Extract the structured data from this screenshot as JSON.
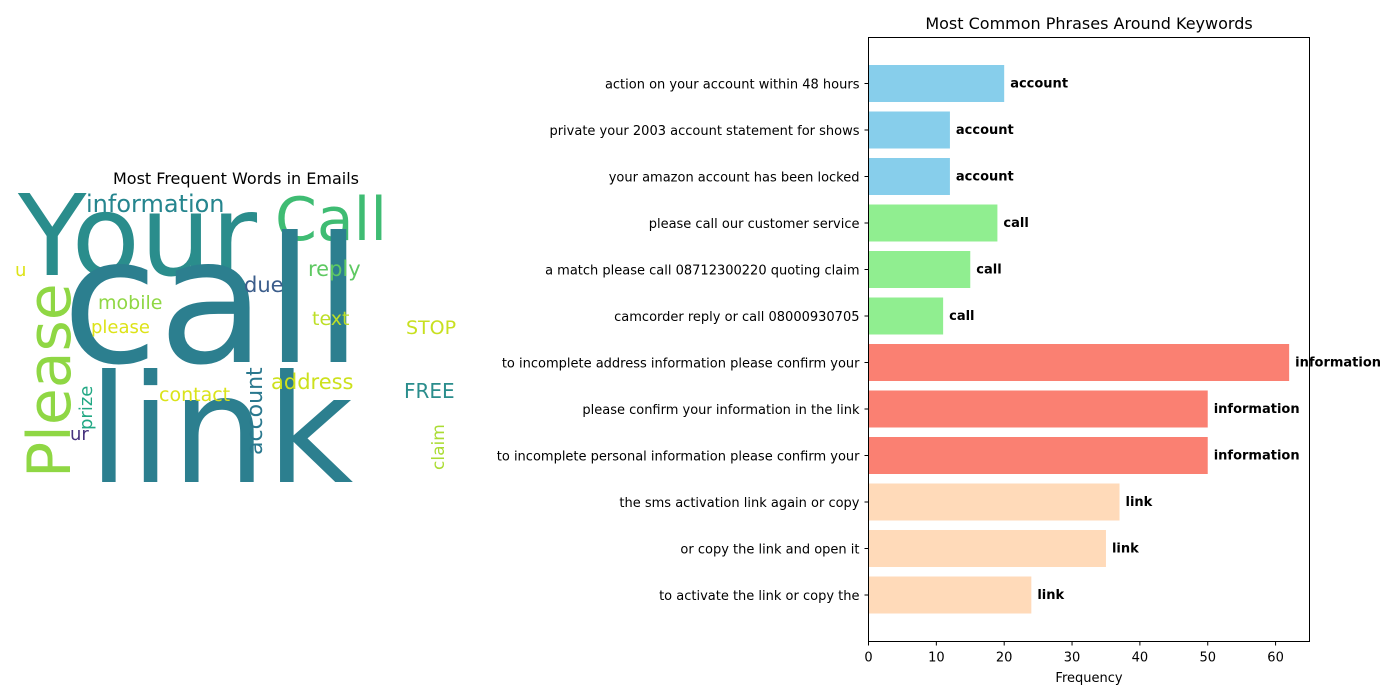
{
  "wordcloud": {
    "title": "Most Frequent Words in Emails",
    "words": [
      {
        "text": "Your",
        "color": "#2a8d8c"
      },
      {
        "text": "Call",
        "color": "#3fbc73"
      },
      {
        "text": "call",
        "color": "#2c7f8f"
      },
      {
        "text": "link",
        "color": "#2c7f8f"
      },
      {
        "text": "Please",
        "color": "#8fd744"
      },
      {
        "text": "information",
        "color": "#25858e"
      },
      {
        "text": "reply",
        "color": "#5ec962"
      },
      {
        "text": "due",
        "color": "#3b5d8b"
      },
      {
        "text": "mobile",
        "color": "#8fd744"
      },
      {
        "text": "please",
        "color": "#dde318"
      },
      {
        "text": "text",
        "color": "#bddf26"
      },
      {
        "text": "STOP",
        "color": "#c8e020"
      },
      {
        "text": "address",
        "color": "#cde11d"
      },
      {
        "text": "contact",
        "color": "#dae319"
      },
      {
        "text": "account",
        "color": "#2a788e"
      },
      {
        "text": "FREE",
        "color": "#2a8d8c"
      },
      {
        "text": "prize",
        "color": "#22a884"
      },
      {
        "text": "claim",
        "color": "#aadc32"
      },
      {
        "text": "ur",
        "color": "#46327e"
      },
      {
        "text": "u",
        "color": "#dde318"
      }
    ]
  },
  "chart_data": {
    "type": "bar",
    "orientation": "horizontal",
    "title": "Most Common Phrases Around Keywords",
    "xlabel": "Frequency",
    "ylabel": "",
    "xlim": [
      0,
      65
    ],
    "xticks": [
      0,
      10,
      20,
      30,
      40,
      50,
      60
    ],
    "grid": false,
    "categories": [
      "action on your account within 48 hours",
      "private your 2003 account statement for shows",
      "your amazon account has been locked",
      "please call our customer service",
      "a match please call 08712300220 quoting claim",
      "camcorder reply or call 08000930705",
      "to incomplete address information please confirm your",
      "please confirm your information in the link",
      "to incomplete personal information please confirm your",
      "the sms activation link again or copy",
      "or copy the link and open it",
      "to activate the link or copy the"
    ],
    "values": [
      20,
      12,
      12,
      19,
      15,
      11,
      62,
      50,
      50,
      37,
      35,
      24
    ],
    "bar_labels": [
      "account",
      "account",
      "account",
      "call",
      "call",
      "call",
      "information",
      "information",
      "information",
      "link",
      "link",
      "link"
    ],
    "colors": [
      "#87ceeb",
      "#87ceeb",
      "#87ceeb",
      "#90ee90",
      "#90ee90",
      "#90ee90",
      "#fa8072",
      "#fa8072",
      "#fa8072",
      "#ffdab9",
      "#ffdab9",
      "#ffdab9"
    ]
  }
}
